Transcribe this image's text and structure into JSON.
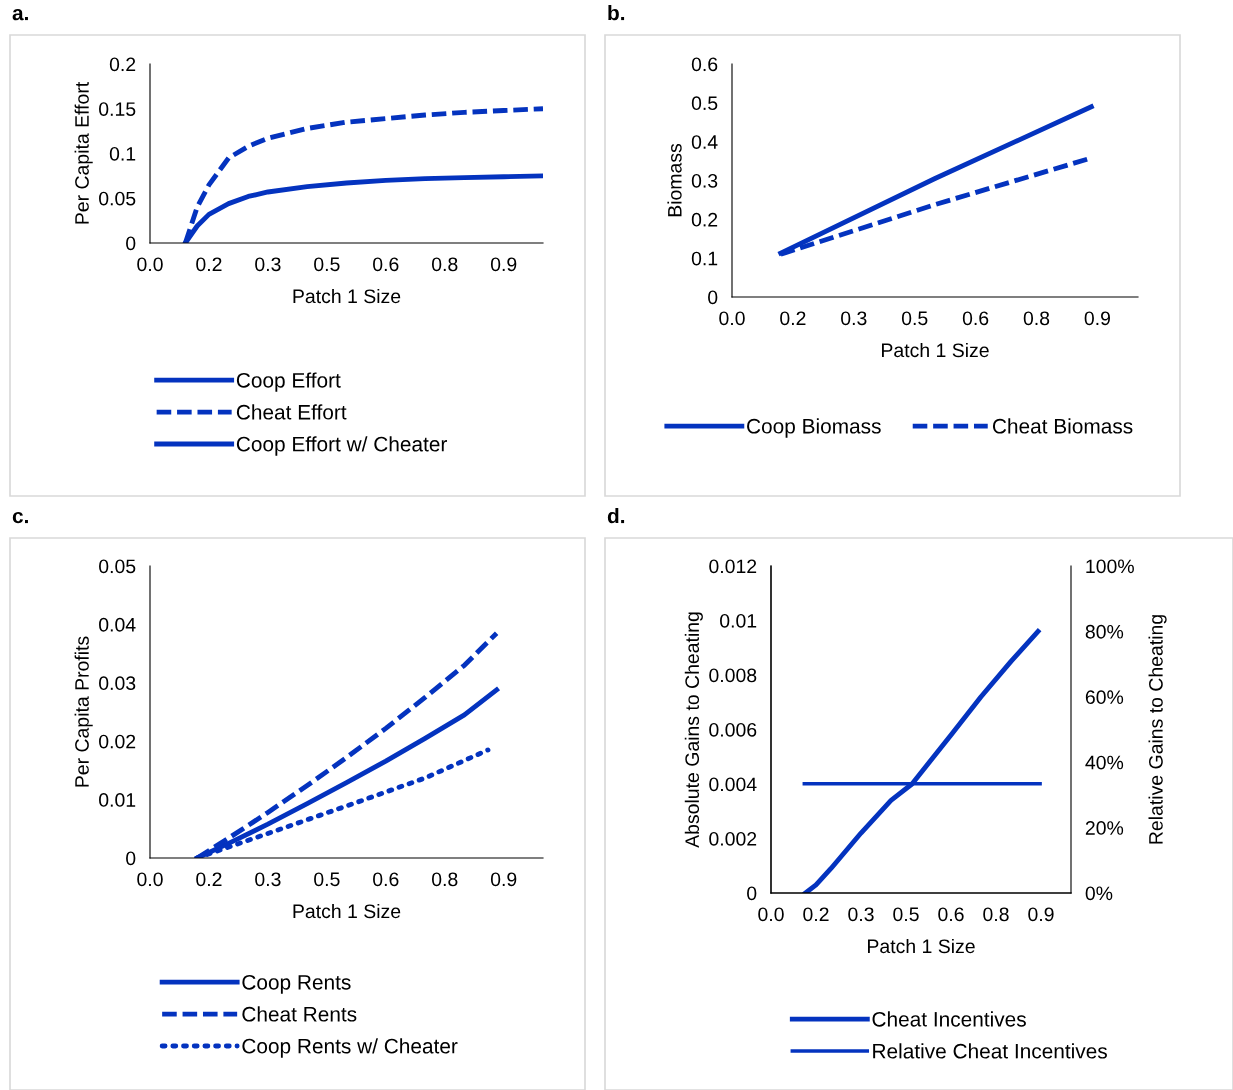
{
  "chart_data": [
    {
      "type": "line",
      "title": "a.",
      "xlabel": "Patch 1 Size",
      "ylabel": "Per Capita Effort",
      "xlim": [
        0,
        1
      ],
      "ylim": [
        0,
        0.2
      ],
      "xticks": [
        {
          "value": 0,
          "label": "0.0"
        },
        {
          "value": 0.15,
          "label": "0.2"
        },
        {
          "value": 0.3,
          "label": "0.3"
        },
        {
          "value": 0.45,
          "label": "0.5"
        },
        {
          "value": 0.6,
          "label": "0.6"
        },
        {
          "value": 0.75,
          "label": "0.8"
        },
        {
          "value": 0.9,
          "label": "0.9"
        }
      ],
      "yticks": [
        0,
        0.05,
        0.1,
        0.15,
        0.2
      ],
      "grid": false,
      "legend": "bottom",
      "x": [
        0.09,
        0.12,
        0.15,
        0.2,
        0.25,
        0.3,
        0.4,
        0.5,
        0.6,
        0.7,
        0.8,
        0.9,
        1.0
      ],
      "series": [
        {
          "name": "Coop Effort",
          "color": "#0433bf",
          "line_style": "solid",
          "values": [
            0,
            0.019,
            0.032,
            0.044,
            0.052,
            0.057,
            0.063,
            0.067,
            0.07,
            0.072,
            0.073,
            0.074,
            0.075
          ]
        },
        {
          "name": "Cheat Effort",
          "color": "#0433bf",
          "line_style": "dashed",
          "values": [
            0,
            0.04,
            0.065,
            0.095,
            0.108,
            0.117,
            0.128,
            0.135,
            0.139,
            0.143,
            0.146,
            0.148,
            0.15
          ]
        },
        {
          "name": "Coop Effort w/ Cheater",
          "color": "#0433bf",
          "line_style": "solid",
          "values": [
            null,
            null,
            null,
            null,
            null,
            null,
            null,
            null,
            null,
            null,
            null,
            null,
            null
          ]
        }
      ]
    },
    {
      "type": "line",
      "title": "b.",
      "xlabel": "Patch 1 Size",
      "ylabel": "Biomass",
      "xlim": [
        0,
        1
      ],
      "ylim": [
        0,
        0.6
      ],
      "xticks": [
        {
          "value": 0,
          "label": "0.0"
        },
        {
          "value": 0.15,
          "label": "0.2"
        },
        {
          "value": 0.3,
          "label": "0.3"
        },
        {
          "value": 0.45,
          "label": "0.5"
        },
        {
          "value": 0.6,
          "label": "0.6"
        },
        {
          "value": 0.75,
          "label": "0.8"
        },
        {
          "value": 0.9,
          "label": "0.9"
        }
      ],
      "yticks": [
        0,
        0.1,
        0.2,
        0.3,
        0.4,
        0.5,
        0.6
      ],
      "grid": false,
      "legend": "bottom",
      "x": [
        0.12,
        0.5,
        0.885
      ],
      "series": [
        {
          "name": "Coop Biomass",
          "color": "#0433bf",
          "line_style": "solid",
          "values": [
            0.113,
            0.305,
            0.49
          ]
        },
        {
          "name": "Cheat Biomass",
          "color": "#0433bf",
          "line_style": "dashed",
          "values": [
            0.11,
            0.238,
            0.358
          ]
        }
      ]
    },
    {
      "type": "line",
      "title": "c.",
      "xlabel": "Patch 1 Size",
      "ylabel": "Per Capita Profits",
      "xlim": [
        0,
        1
      ],
      "ylim": [
        0,
        0.05
      ],
      "xticks": [
        {
          "value": 0,
          "label": "0.0"
        },
        {
          "value": 0.15,
          "label": "0.2"
        },
        {
          "value": 0.3,
          "label": "0.3"
        },
        {
          "value": 0.45,
          "label": "0.5"
        },
        {
          "value": 0.6,
          "label": "0.6"
        },
        {
          "value": 0.75,
          "label": "0.8"
        },
        {
          "value": 0.9,
          "label": "0.9"
        }
      ],
      "yticks": [
        0,
        0.01,
        0.02,
        0.03,
        0.04,
        0.05
      ],
      "grid": false,
      "legend": "bottom",
      "series": [
        {
          "name": "Coop Rents",
          "color": "#0433bf",
          "line_style": "solid",
          "x": [
            0.12,
            0.2,
            0.3,
            0.4,
            0.5,
            0.6,
            0.7,
            0.8,
            0.882
          ],
          "values": [
            0,
            0.0025,
            0.0058,
            0.0093,
            0.0129,
            0.0166,
            0.0205,
            0.0245,
            0.0288
          ]
        },
        {
          "name": "Cheat Rents",
          "color": "#0433bf",
          "line_style": "dashed",
          "x": [
            0.12,
            0.2,
            0.3,
            0.4,
            0.5,
            0.6,
            0.7,
            0.8,
            0.882
          ],
          "values": [
            0,
            0.0034,
            0.0078,
            0.0124,
            0.0172,
            0.0222,
            0.0275,
            0.033,
            0.0385
          ]
        },
        {
          "name": "Coop Rents w/ Cheater",
          "color": "#0433bf",
          "line_style": "dotted",
          "x": [
            0.12,
            0.3,
            0.5,
            0.7,
            0.86
          ],
          "values": [
            0,
            0.0042,
            0.0089,
            0.0137,
            0.0185
          ]
        }
      ]
    },
    {
      "type": "line",
      "title": "d.",
      "xlabel": "Patch 1 Size",
      "ylabel": "Absolute Gains to Cheating",
      "y2label": "Relative Gains to Cheating",
      "xlim": [
        0,
        1
      ],
      "ylim": [
        0,
        0.012
      ],
      "y2lim": [
        0,
        100
      ],
      "xticks": [
        {
          "value": 0,
          "label": "0.0"
        },
        {
          "value": 0.15,
          "label": "0.2"
        },
        {
          "value": 0.3,
          "label": "0.3"
        },
        {
          "value": 0.45,
          "label": "0.5"
        },
        {
          "value": 0.6,
          "label": "0.6"
        },
        {
          "value": 0.75,
          "label": "0.8"
        },
        {
          "value": 0.9,
          "label": "0.9"
        }
      ],
      "yticks": [
        0,
        0.002,
        0.004,
        0.006,
        0.008,
        0.01,
        0.012
      ],
      "y2ticks": [
        {
          "value": 0,
          "label": "0%"
        },
        {
          "value": 20,
          "label": "20%"
        },
        {
          "value": 40,
          "label": "40%"
        },
        {
          "value": 60,
          "label": "60%"
        },
        {
          "value": 80,
          "label": "80%"
        },
        {
          "value": 100,
          "label": "100%"
        }
      ],
      "grid": false,
      "legend": "bottom",
      "series": [
        {
          "name": "Cheat Incentives",
          "color": "#0433bf",
          "line_style": "solid",
          "x": [
            0.115,
            0.15,
            0.2,
            0.3,
            0.4,
            0.47,
            0.6,
            0.7,
            0.8,
            0.89
          ],
          "values": [
            0,
            0.0003,
            0.0009,
            0.0022,
            0.0034,
            0.004,
            0.0058,
            0.0072,
            0.0085,
            0.0096
          ]
        },
        {
          "name": "Relative Cheat Incentives",
          "color": "#0433bf",
          "line_style": "solid",
          "axis": "y2",
          "x": [
            0.111,
            0.897
          ],
          "values": [
            33.4,
            33.4
          ]
        }
      ]
    }
  ]
}
